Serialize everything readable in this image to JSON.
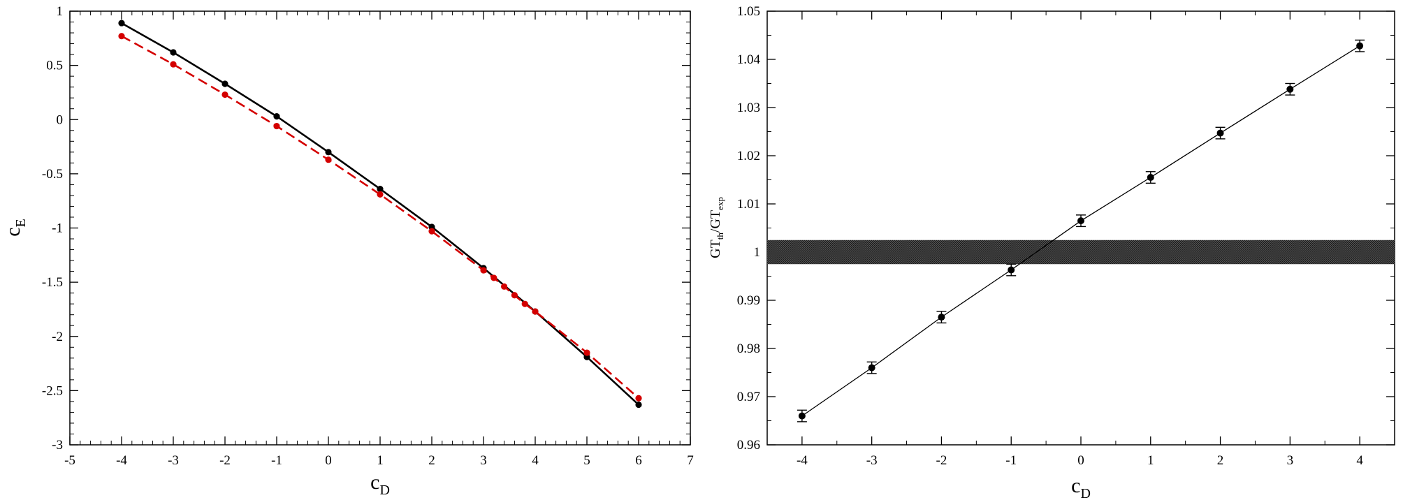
{
  "chart_data": [
    {
      "type": "line",
      "xlabel": {
        "base": "c",
        "sub": "D"
      },
      "ylabel": {
        "base": "c",
        "sub": "E"
      },
      "xlim": [
        -5,
        7
      ],
      "ylim": [
        -3,
        1
      ],
      "x_ticks": [
        "-5",
        "-4",
        "-3",
        "-2",
        "-1",
        "0",
        "1",
        "2",
        "3",
        "4",
        "5",
        "6",
        "7"
      ],
      "y_ticks": [
        "-3",
        "-2.5",
        "-2",
        "-1.5",
        "-1",
        "-0.5",
        "0",
        "0.5",
        "1"
      ],
      "grid": false,
      "legend": "none",
      "series": [
        {
          "color": "#000000",
          "style": "solid",
          "x": [
            -4,
            -3,
            -2,
            -1,
            0,
            1,
            2,
            3,
            4,
            5,
            6
          ],
          "y": [
            0.89,
            0.62,
            0.33,
            0.03,
            -0.3,
            -0.64,
            -0.99,
            -1.37,
            -1.77,
            -2.19,
            -2.63
          ]
        },
        {
          "color": "#d40000",
          "style": "dashed",
          "x": [
            -4,
            -3,
            -2,
            -1,
            0,
            1,
            2,
            3,
            3.2,
            3.4,
            3.6,
            3.8,
            4,
            5,
            6
          ],
          "y": [
            0.77,
            0.51,
            0.23,
            -0.06,
            -0.37,
            -0.69,
            -1.03,
            -1.39,
            -1.46,
            -1.54,
            -1.62,
            -1.7,
            -1.77,
            -2.15,
            -2.57
          ]
        }
      ]
    },
    {
      "type": "scatter",
      "xlabel": {
        "base": "c",
        "sub": "D"
      },
      "ylabel": {
        "a": "GT",
        "a_sub": "th",
        "slash": "/GT",
        "b_sub": "exp"
      },
      "xlim": [
        -4.5,
        4.5
      ],
      "ylim": [
        0.96,
        1.05
      ],
      "x_ticks": [
        "-4",
        "-3",
        "-2",
        "-1",
        "0",
        "1",
        "2",
        "3",
        "4"
      ],
      "y_ticks": [
        "0.96",
        "0.97",
        "0.98",
        "0.99",
        "1",
        "1.01",
        "1.02",
        "1.03",
        "1.04",
        "1.05"
      ],
      "grid": false,
      "legend": "none",
      "band": {
        "y_low": 0.9975,
        "y_high": 1.0025,
        "color": "#3a3a3a"
      },
      "series": [
        {
          "color": "#000000",
          "style": "solid",
          "x": [
            -4,
            -3,
            -2,
            -1,
            0,
            1,
            2,
            3,
            4
          ],
          "y": [
            0.966,
            0.976,
            0.9865,
            0.9963,
            1.0065,
            1.0155,
            1.0247,
            1.0338,
            1.0428
          ],
          "err": [
            0.0012,
            0.0012,
            0.0012,
            0.0012,
            0.0012,
            0.0012,
            0.0012,
            0.0012,
            0.0012
          ]
        }
      ]
    }
  ]
}
